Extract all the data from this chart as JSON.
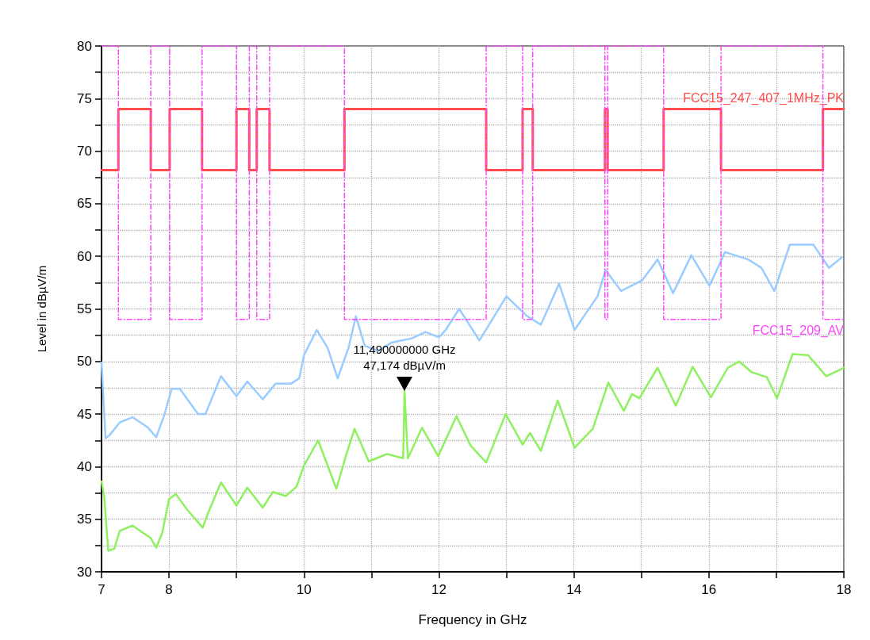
{
  "chart_data": {
    "type": "line",
    "xlabel": "Frequency in GHz",
    "ylabel": "Level in dBµV/m",
    "xlim": [
      7,
      18
    ],
    "ylim": [
      30,
      80
    ],
    "xticks": [
      7,
      8,
      {
        "value": 9,
        "label": null
      },
      10,
      {
        "value": 11,
        "label": null
      },
      12,
      {
        "value": 13,
        "label": null
      },
      14,
      {
        "value": 15,
        "label": null
      },
      16,
      {
        "value": 17,
        "label": null
      },
      18
    ],
    "yticks": [
      30,
      {
        "value": 32.5,
        "label": null
      },
      35,
      {
        "value": 37.5,
        "label": null
      },
      40,
      {
        "value": 42.5,
        "label": null
      },
      45,
      {
        "value": 47.5,
        "label": null
      },
      50,
      {
        "value": 52.5,
        "label": null
      },
      55,
      {
        "value": 57.5,
        "label": null
      },
      60,
      {
        "value": 62.5,
        "label": null
      },
      65,
      {
        "value": 67.5,
        "label": null
      },
      70,
      {
        "value": 72.5,
        "label": null
      },
      75,
      {
        "value": 77.5,
        "label": null
      },
      80
    ],
    "grid": true,
    "series": [
      {
        "color": "#99ccff",
        "x": [
          7.0,
          7.06,
          7.12,
          7.27,
          7.46,
          7.69,
          7.81,
          7.92,
          8.04,
          8.16,
          8.43,
          8.54,
          8.77,
          9.0,
          9.16,
          9.39,
          9.58,
          9.81,
          9.93,
          10.0,
          10.19,
          10.35,
          10.5,
          10.66,
          10.77,
          10.9,
          11.1,
          11.3,
          11.6,
          11.8,
          12.0,
          12.1,
          12.3,
          12.45,
          12.6,
          13.0,
          13.31,
          13.51,
          13.78,
          14.01,
          14.35,
          14.47,
          14.7,
          15.01,
          15.24,
          15.47,
          15.74,
          16.01,
          16.24,
          16.58,
          16.78,
          16.97,
          17.2,
          17.55,
          17.78,
          17.97
        ],
        "values": [
          49.9,
          42.7,
          43.0,
          44.2,
          44.7,
          43.7,
          42.8,
          44.7,
          47.4,
          47.4,
          45.0,
          45.0,
          48.6,
          46.7,
          48.1,
          46.4,
          47.9,
          47.9,
          48.4,
          50.6,
          53.0,
          51.3,
          48.4,
          51.3,
          54.3,
          51.5,
          51.0,
          51.8,
          52.2,
          52.8,
          52.3,
          53.0,
          55.0,
          53.5,
          52.0,
          56.2,
          54.3,
          53.5,
          57.4,
          53.0,
          56.2,
          58.7,
          56.7,
          57.7,
          59.7,
          56.5,
          60.1,
          57.2,
          60.4,
          59.7,
          58.9,
          56.7,
          61.1,
          61.1,
          58.9,
          59.9
        ]
      },
      {
        "color": "#8ff060",
        "x": [
          7.0,
          7.04,
          7.1,
          7.19,
          7.27,
          7.46,
          7.73,
          7.81,
          7.9,
          8.0,
          8.1,
          8.27,
          8.5,
          8.58,
          8.77,
          9.0,
          9.16,
          9.39,
          9.54,
          9.73,
          9.89,
          10.0,
          10.21,
          10.48,
          10.62,
          10.75,
          10.96,
          11.23,
          11.47,
          11.49,
          11.54,
          11.75,
          11.99,
          12.26,
          12.47,
          12.7,
          12.99,
          13.24,
          13.35,
          13.51,
          13.76,
          14.01,
          14.28,
          14.51,
          14.74,
          14.86,
          14.97,
          15.24,
          15.51,
          15.76,
          16.03,
          16.28,
          16.45,
          16.63,
          16.86,
          17.01,
          17.24,
          17.47,
          17.74,
          18.0
        ],
        "values": [
          38.6,
          37.1,
          32.0,
          32.2,
          33.9,
          34.4,
          33.2,
          32.3,
          33.7,
          36.9,
          37.4,
          35.9,
          34.2,
          35.6,
          38.5,
          36.3,
          38.0,
          36.1,
          37.6,
          37.2,
          38.1,
          40.1,
          42.5,
          37.9,
          41.0,
          43.6,
          40.5,
          41.2,
          40.8,
          47.174,
          40.8,
          43.7,
          41.0,
          44.8,
          42.0,
          40.4,
          45.0,
          42.1,
          43.2,
          41.5,
          46.3,
          41.8,
          43.6,
          48.0,
          45.3,
          46.9,
          46.5,
          49.4,
          45.8,
          49.5,
          46.6,
          49.4,
          50.0,
          49.0,
          48.5,
          46.5,
          50.7,
          50.6,
          48.6,
          49.4
        ]
      },
      {
        "type": "step",
        "name": "FCC15_247_407_1MHz_PK",
        "color": "#ff4d4d",
        "line_style": "solid",
        "x": [
          7,
          7.25,
          7.73,
          8.01,
          8.49,
          9.0,
          9.19,
          9.3,
          9.49,
          10.6,
          12.7,
          13.24,
          13.39,
          14.46,
          14.5,
          15.33,
          16.18,
          17.69,
          18
        ],
        "values": [
          68.2,
          74,
          68.2,
          74,
          68.2,
          74,
          68.2,
          74,
          68.2,
          74,
          68.2,
          74,
          68.2,
          74,
          68.2,
          74,
          68.2,
          74,
          74
        ]
      },
      {
        "type": "step",
        "name": "FCC15_209_AV",
        "color": "#ff44ff",
        "line_style": "dashed",
        "x": [
          7,
          7.25,
          7.73,
          8.01,
          8.49,
          9.0,
          9.19,
          9.3,
          9.49,
          10.6,
          12.7,
          13.24,
          13.39,
          14.46,
          14.5,
          15.33,
          16.18,
          17.69,
          18
        ],
        "values": [
          80,
          54,
          80,
          54,
          80,
          54,
          80,
          54,
          80,
          54,
          80,
          54,
          80,
          54,
          80,
          54,
          80,
          54,
          54
        ]
      }
    ],
    "annotations": [
      {
        "text": "11,490000000 GHz\n47,174 dBµV/m",
        "x": 11.49,
        "y": 47.174
      }
    ]
  }
}
